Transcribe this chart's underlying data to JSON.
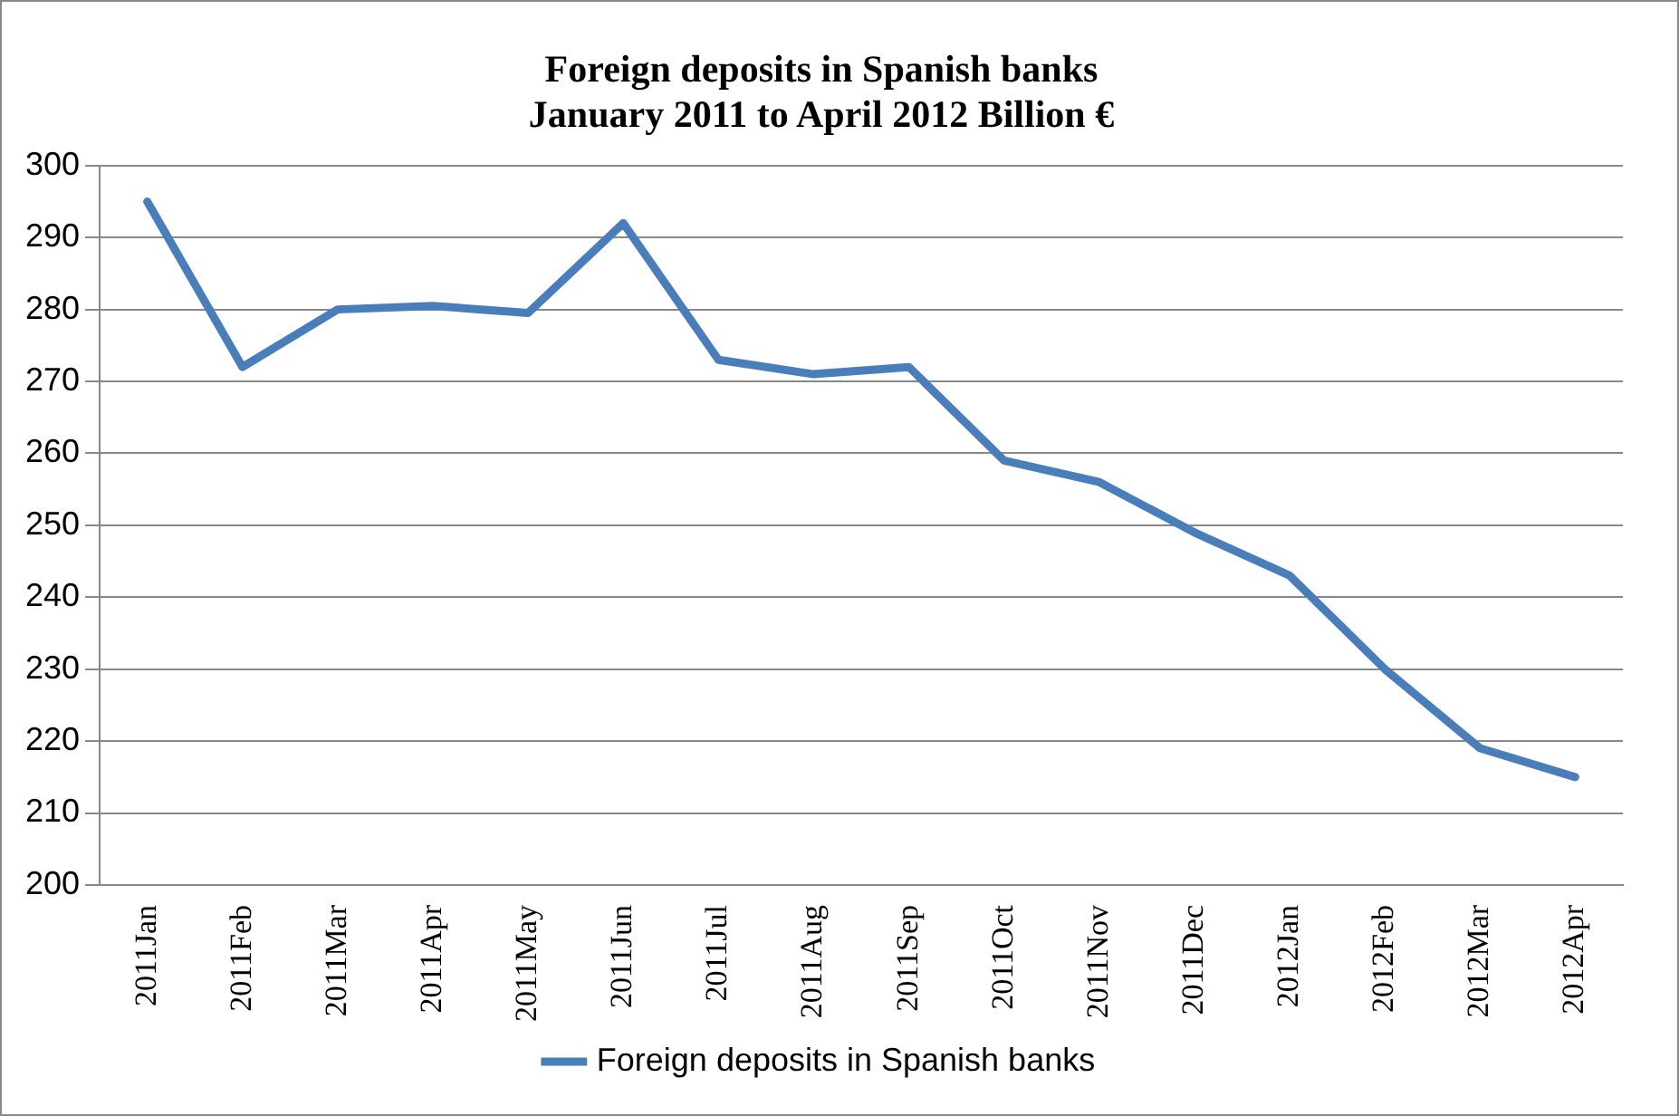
{
  "chart_data": {
    "type": "line",
    "title": [
      "Foreign deposits in Spanish banks",
      "January 2011 to April 2012 Billion €"
    ],
    "categories": [
      "2011Jan",
      "2011Feb",
      "2011Mar",
      "2011Apr",
      "2011May",
      "2011Jun",
      "2011Jul",
      "2011Aug",
      "2011Sep",
      "2011Oct",
      "2011Nov",
      "2011Dec",
      "2012Jan",
      "2012Feb",
      "2012Mar",
      "2012Apr"
    ],
    "series": [
      {
        "name": "Foreign deposits in Spanish banks",
        "color": "#4a7ebb",
        "values": [
          295,
          272,
          280,
          280.5,
          279.5,
          292,
          273,
          271,
          272,
          259,
          256,
          249,
          243,
          230,
          219,
          215
        ]
      }
    ],
    "ylim": [
      200,
      300
    ],
    "yticks": [
      200,
      210,
      220,
      230,
      240,
      250,
      260,
      270,
      280,
      290,
      300
    ],
    "grid": "y",
    "legend": "bottom",
    "marker": "none",
    "line_style": "solid"
  }
}
